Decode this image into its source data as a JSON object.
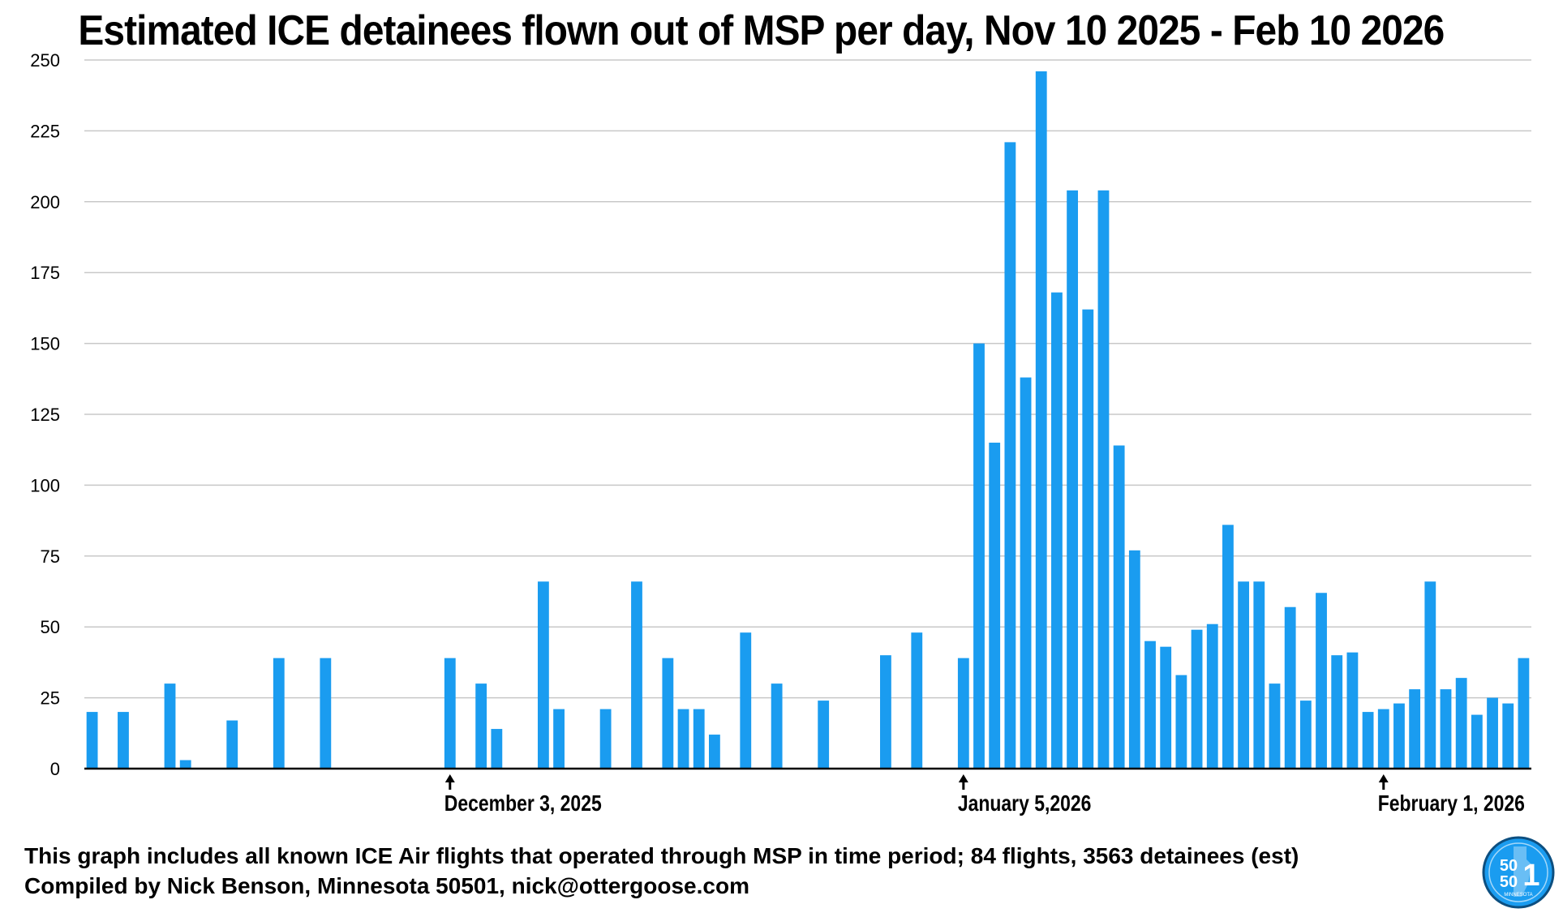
{
  "title": "Estimated ICE detainees flown out of MSP per day, Nov 10 2025 - Feb 10 2026",
  "footnote_line1": "This graph includes all known ICE Air flights that operated through MSP in time period; 84 flights, 3563 detainees (est)",
  "footnote_line2": "Compiled by Nick Benson, Minnesota 50501, nick@ottergoose.com",
  "logo": {
    "icon": "minnesota-50501-logo",
    "text_top": "50",
    "text_bottom": "50",
    "text_one": "1",
    "text_small": "MINNESOTA"
  },
  "colors": {
    "bar": "#1a9cf0",
    "grid": "#c8c8c8",
    "axis": "#000000"
  },
  "chart_data": {
    "type": "bar",
    "title": "Estimated ICE detainees flown out of MSP per day, Nov 10 2025 - Feb 10 2026",
    "xlabel": "",
    "ylabel": "",
    "ylim": [
      0,
      250
    ],
    "yticks": [
      0,
      25,
      50,
      75,
      100,
      125,
      150,
      175,
      200,
      225,
      250
    ],
    "grid": true,
    "x_range": [
      "2025-11-10",
      "2026-02-10"
    ],
    "x_markers": [
      {
        "date": "2025-12-03",
        "label": "December 3, 2025"
      },
      {
        "date": "2026-01-05",
        "label": "January 5,2026"
      },
      {
        "date": "2026-02-01",
        "label": "February 1, 2026"
      }
    ],
    "points": [
      {
        "date": "2025-11-10",
        "value": 20
      },
      {
        "date": "2025-11-12",
        "value": 20
      },
      {
        "date": "2025-11-15",
        "value": 30
      },
      {
        "date": "2025-11-16",
        "value": 3
      },
      {
        "date": "2025-11-19",
        "value": 17
      },
      {
        "date": "2025-11-22",
        "value": 39
      },
      {
        "date": "2025-11-25",
        "value": 39
      },
      {
        "date": "2025-12-03",
        "value": 39
      },
      {
        "date": "2025-12-05",
        "value": 30
      },
      {
        "date": "2025-12-06",
        "value": 14
      },
      {
        "date": "2025-12-09",
        "value": 66
      },
      {
        "date": "2025-12-10",
        "value": 21
      },
      {
        "date": "2025-12-13",
        "value": 21
      },
      {
        "date": "2025-12-15",
        "value": 66
      },
      {
        "date": "2025-12-17",
        "value": 39
      },
      {
        "date": "2025-12-18",
        "value": 21
      },
      {
        "date": "2025-12-19",
        "value": 21
      },
      {
        "date": "2025-12-20",
        "value": 12
      },
      {
        "date": "2025-12-22",
        "value": 48
      },
      {
        "date": "2025-12-24",
        "value": 30
      },
      {
        "date": "2025-12-27",
        "value": 24
      },
      {
        "date": "2025-12-31",
        "value": 40
      },
      {
        "date": "2026-01-02",
        "value": 48
      },
      {
        "date": "2026-01-05",
        "value": 39
      },
      {
        "date": "2026-01-06",
        "value": 150
      },
      {
        "date": "2026-01-07",
        "value": 115
      },
      {
        "date": "2026-01-08",
        "value": 221
      },
      {
        "date": "2026-01-09",
        "value": 138
      },
      {
        "date": "2026-01-10",
        "value": 246
      },
      {
        "date": "2026-01-11",
        "value": 168
      },
      {
        "date": "2026-01-12",
        "value": 204
      },
      {
        "date": "2026-01-13",
        "value": 162
      },
      {
        "date": "2026-01-14",
        "value": 204
      },
      {
        "date": "2026-01-15",
        "value": 114
      },
      {
        "date": "2026-01-16",
        "value": 77
      },
      {
        "date": "2026-01-17",
        "value": 45
      },
      {
        "date": "2026-01-18",
        "value": 43
      },
      {
        "date": "2026-01-19",
        "value": 33
      },
      {
        "date": "2026-01-20",
        "value": 49
      },
      {
        "date": "2026-01-21",
        "value": 51
      },
      {
        "date": "2026-01-22",
        "value": 86
      },
      {
        "date": "2026-01-23",
        "value": 66
      },
      {
        "date": "2026-01-24",
        "value": 66
      },
      {
        "date": "2026-01-25",
        "value": 30
      },
      {
        "date": "2026-01-26",
        "value": 57
      },
      {
        "date": "2026-01-27",
        "value": 24
      },
      {
        "date": "2026-01-28",
        "value": 62
      },
      {
        "date": "2026-01-29",
        "value": 40
      },
      {
        "date": "2026-01-30",
        "value": 41
      },
      {
        "date": "2026-01-31",
        "value": 20
      },
      {
        "date": "2026-02-01",
        "value": 21
      },
      {
        "date": "2026-02-02",
        "value": 23
      },
      {
        "date": "2026-02-03",
        "value": 28
      },
      {
        "date": "2026-02-04",
        "value": 66
      },
      {
        "date": "2026-02-05",
        "value": 28
      },
      {
        "date": "2026-02-06",
        "value": 32
      },
      {
        "date": "2026-02-07",
        "value": 19
      },
      {
        "date": "2026-02-08",
        "value": 25
      },
      {
        "date": "2026-02-09",
        "value": 23
      },
      {
        "date": "2026-02-10",
        "value": 39
      }
    ]
  }
}
